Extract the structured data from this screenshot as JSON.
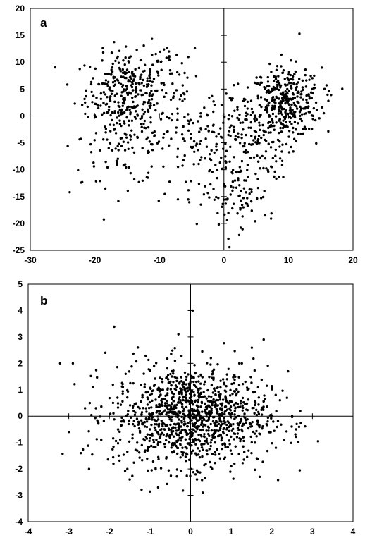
{
  "chart_data": [
    {
      "type": "scatter",
      "panel_label": "a",
      "title": "",
      "xlabel": "",
      "ylabel": "",
      "xlim": [
        -30,
        20
      ],
      "ylim": [
        -25,
        20
      ],
      "x_ticks": [
        -30,
        -20,
        -10,
        0,
        10,
        20
      ],
      "y_ticks": [
        20,
        15,
        10,
        5,
        0,
        -5,
        -10,
        -15,
        -20,
        -25
      ],
      "x_tick_labels": [
        "-30",
        "-20",
        "-10",
        "0",
        "10",
        "20"
      ],
      "y_tick_labels": [
        "20",
        "15",
        "10",
        "5",
        "0",
        "-5",
        "-10",
        "-15",
        "-20",
        "-25"
      ],
      "grid": false,
      "point_color": "#000000",
      "sampled_points": [
        [
          -24.2,
          -5.6
        ],
        [
          -23.9,
          -14.2
        ],
        [
          -23.1,
          2.3
        ],
        [
          -22.6,
          -10.1
        ],
        [
          -22.1,
          -12.4
        ],
        [
          -21.5,
          0.4
        ],
        [
          -20.2,
          -8.7
        ],
        [
          -19.8,
          -3.2
        ],
        [
          -19.2,
          -12.1
        ],
        [
          -18.7,
          11.8
        ],
        [
          -18.1,
          5.9
        ],
        [
          -17.6,
          2.8
        ],
        [
          -17.2,
          9.7
        ],
        [
          -16.6,
          4.1
        ],
        [
          -16.3,
          -5.2
        ],
        [
          -15.9,
          7.3
        ],
        [
          -15.4,
          -1.4
        ],
        [
          -15.1,
          5.6
        ],
        [
          -14.8,
          10.2
        ],
        [
          -14.2,
          3.4
        ],
        [
          -13.9,
          -6.8
        ],
        [
          -13.5,
          12.3
        ],
        [
          -13.2,
          6.1
        ],
        [
          -12.7,
          -2.9
        ],
        [
          -12.3,
          8.4
        ],
        [
          -11.8,
          1.2
        ],
        [
          -11.2,
          -9.4
        ],
        [
          -10.6,
          4.7
        ],
        [
          -10.1,
          -15.8
        ],
        [
          -9.5,
          -6.1
        ],
        [
          -8.8,
          12.7
        ],
        [
          -8.1,
          -0.8
        ],
        [
          -7.2,
          -7.6
        ],
        [
          -6.5,
          9.8
        ],
        [
          -5.9,
          -12.3
        ],
        [
          -5.1,
          -3.4
        ],
        [
          -4.5,
          12.6
        ],
        [
          -4.2,
          -20.1
        ],
        [
          -3.7,
          -8.2
        ],
        [
          -3.1,
          -14.6
        ],
        [
          -2.5,
          -1.9
        ],
        [
          -1.8,
          -10.4
        ],
        [
          -1.2,
          -5.7
        ],
        [
          -0.8,
          -20.2
        ],
        [
          -0.3,
          -16.9
        ],
        [
          0.2,
          -13.1
        ],
        [
          0.5,
          -19.4
        ],
        [
          0.9,
          -8.5
        ],
        [
          1.3,
          -17.2
        ],
        [
          1.8,
          -3.8
        ],
        [
          2.2,
          -11.6
        ],
        [
          2.6,
          -20.8
        ],
        [
          3.1,
          -6.7
        ],
        [
          3.6,
          -15.3
        ],
        [
          4.2,
          -1.2
        ],
        [
          4.9,
          -4.9
        ],
        [
          5.3,
          -13.4
        ],
        [
          5.8,
          1.7
        ],
        [
          6.4,
          -7.9
        ],
        [
          6.9,
          4.8
        ],
        [
          7.3,
          -19.1
        ],
        [
          7.8,
          -2.6
        ],
        [
          8.2,
          6.3
        ],
        [
          8.5,
          0.9
        ],
        [
          8.9,
          11.4
        ],
        [
          9.3,
          3.7
        ],
        [
          9.7,
          -1.8
        ],
        [
          10.1,
          8.2
        ],
        [
          10.5,
          2.1
        ],
        [
          10.9,
          -4.3
        ],
        [
          11.3,
          5.4
        ],
        [
          11.7,
          15.3
        ],
        [
          12.1,
          0.3
        ],
        [
          12.6,
          7.6
        ],
        [
          13.2,
          -2.4
        ],
        [
          13.8,
          4.2
        ],
        [
          14.3,
          -5.1
        ],
        [
          15.2,
          1.6
        ],
        [
          15.9,
          5.7
        ],
        [
          16.6,
          3.9
        ]
      ]
    },
    {
      "type": "scatter",
      "panel_label": "b",
      "title": "",
      "xlabel": "",
      "ylabel": "",
      "xlim": [
        -4,
        4
      ],
      "ylim": [
        -4,
        5
      ],
      "x_ticks": [
        -4,
        -3,
        -2,
        -1,
        0,
        1,
        2,
        3,
        4
      ],
      "y_ticks": [
        5,
        4,
        3,
        2,
        1,
        0,
        -1,
        -2,
        -3,
        -4
      ],
      "x_tick_labels": [
        "-4",
        "-3",
        "-2",
        "-1",
        "0",
        "1",
        "2",
        "3",
        "4"
      ],
      "y_tick_labels": [
        "5",
        "4",
        "3",
        "2",
        "1",
        "0",
        "-1",
        "-2",
        "-3",
        "-4"
      ],
      "grid": false,
      "point_color": "#000000",
      "sampled_points": [
        [
          -3.0,
          -0.6
        ],
        [
          -2.9,
          2.0
        ],
        [
          -2.7,
          -1.4
        ],
        [
          -2.6,
          0.3
        ],
        [
          -2.5,
          -2.0
        ],
        [
          -2.4,
          1.1
        ],
        [
          -2.2,
          -0.9
        ],
        [
          -2.1,
          2.4
        ],
        [
          -1.9,
          -1.8
        ],
        [
          -1.8,
          0.7
        ],
        [
          -1.7,
          -0.2
        ],
        [
          -1.6,
          1.6
        ],
        [
          -1.5,
          -2.4
        ],
        [
          -1.4,
          0.2
        ],
        [
          -1.3,
          2.6
        ],
        [
          -1.2,
          -1.1
        ],
        [
          -1.1,
          0.9
        ],
        [
          -1.0,
          -0.5
        ],
        [
          -0.9,
          1.9
        ],
        [
          -0.8,
          -2.7
        ],
        [
          -0.7,
          0.4
        ],
        [
          -0.6,
          -1.6
        ],
        [
          -0.5,
          1.3
        ],
        [
          -0.4,
          -0.3
        ],
        [
          -0.3,
          3.1
        ],
        [
          -0.2,
          -1.2
        ],
        [
          -0.1,
          0.6
        ],
        [
          0.0,
          -2.0
        ],
        [
          0.05,
          4.0
        ],
        [
          0.1,
          -0.4
        ],
        [
          0.2,
          1.5
        ],
        [
          0.3,
          -2.9
        ],
        [
          0.4,
          0.1
        ],
        [
          0.5,
          2.2
        ],
        [
          0.6,
          -1.0
        ],
        [
          0.7,
          0.8
        ],
        [
          0.8,
          -0.6
        ],
        [
          0.9,
          1.4
        ],
        [
          1.0,
          -1.9
        ],
        [
          1.1,
          0.3
        ],
        [
          1.2,
          2.0
        ],
        [
          1.3,
          -0.8
        ],
        [
          1.4,
          1.0
        ],
        [
          1.5,
          -1.4
        ],
        [
          1.6,
          0.5
        ],
        [
          1.7,
          -2.3
        ],
        [
          1.8,
          2.9
        ],
        [
          1.9,
          -0.2
        ],
        [
          2.0,
          1.1
        ],
        [
          2.1,
          -1.2
        ],
        [
          2.2,
          0.6
        ],
        [
          2.3,
          -0.9
        ],
        [
          2.4,
          1.7
        ],
        [
          2.5,
          0.0
        ],
        [
          2.6,
          -0.5
        ],
        [
          2.7,
          0.2
        ]
      ]
    }
  ]
}
